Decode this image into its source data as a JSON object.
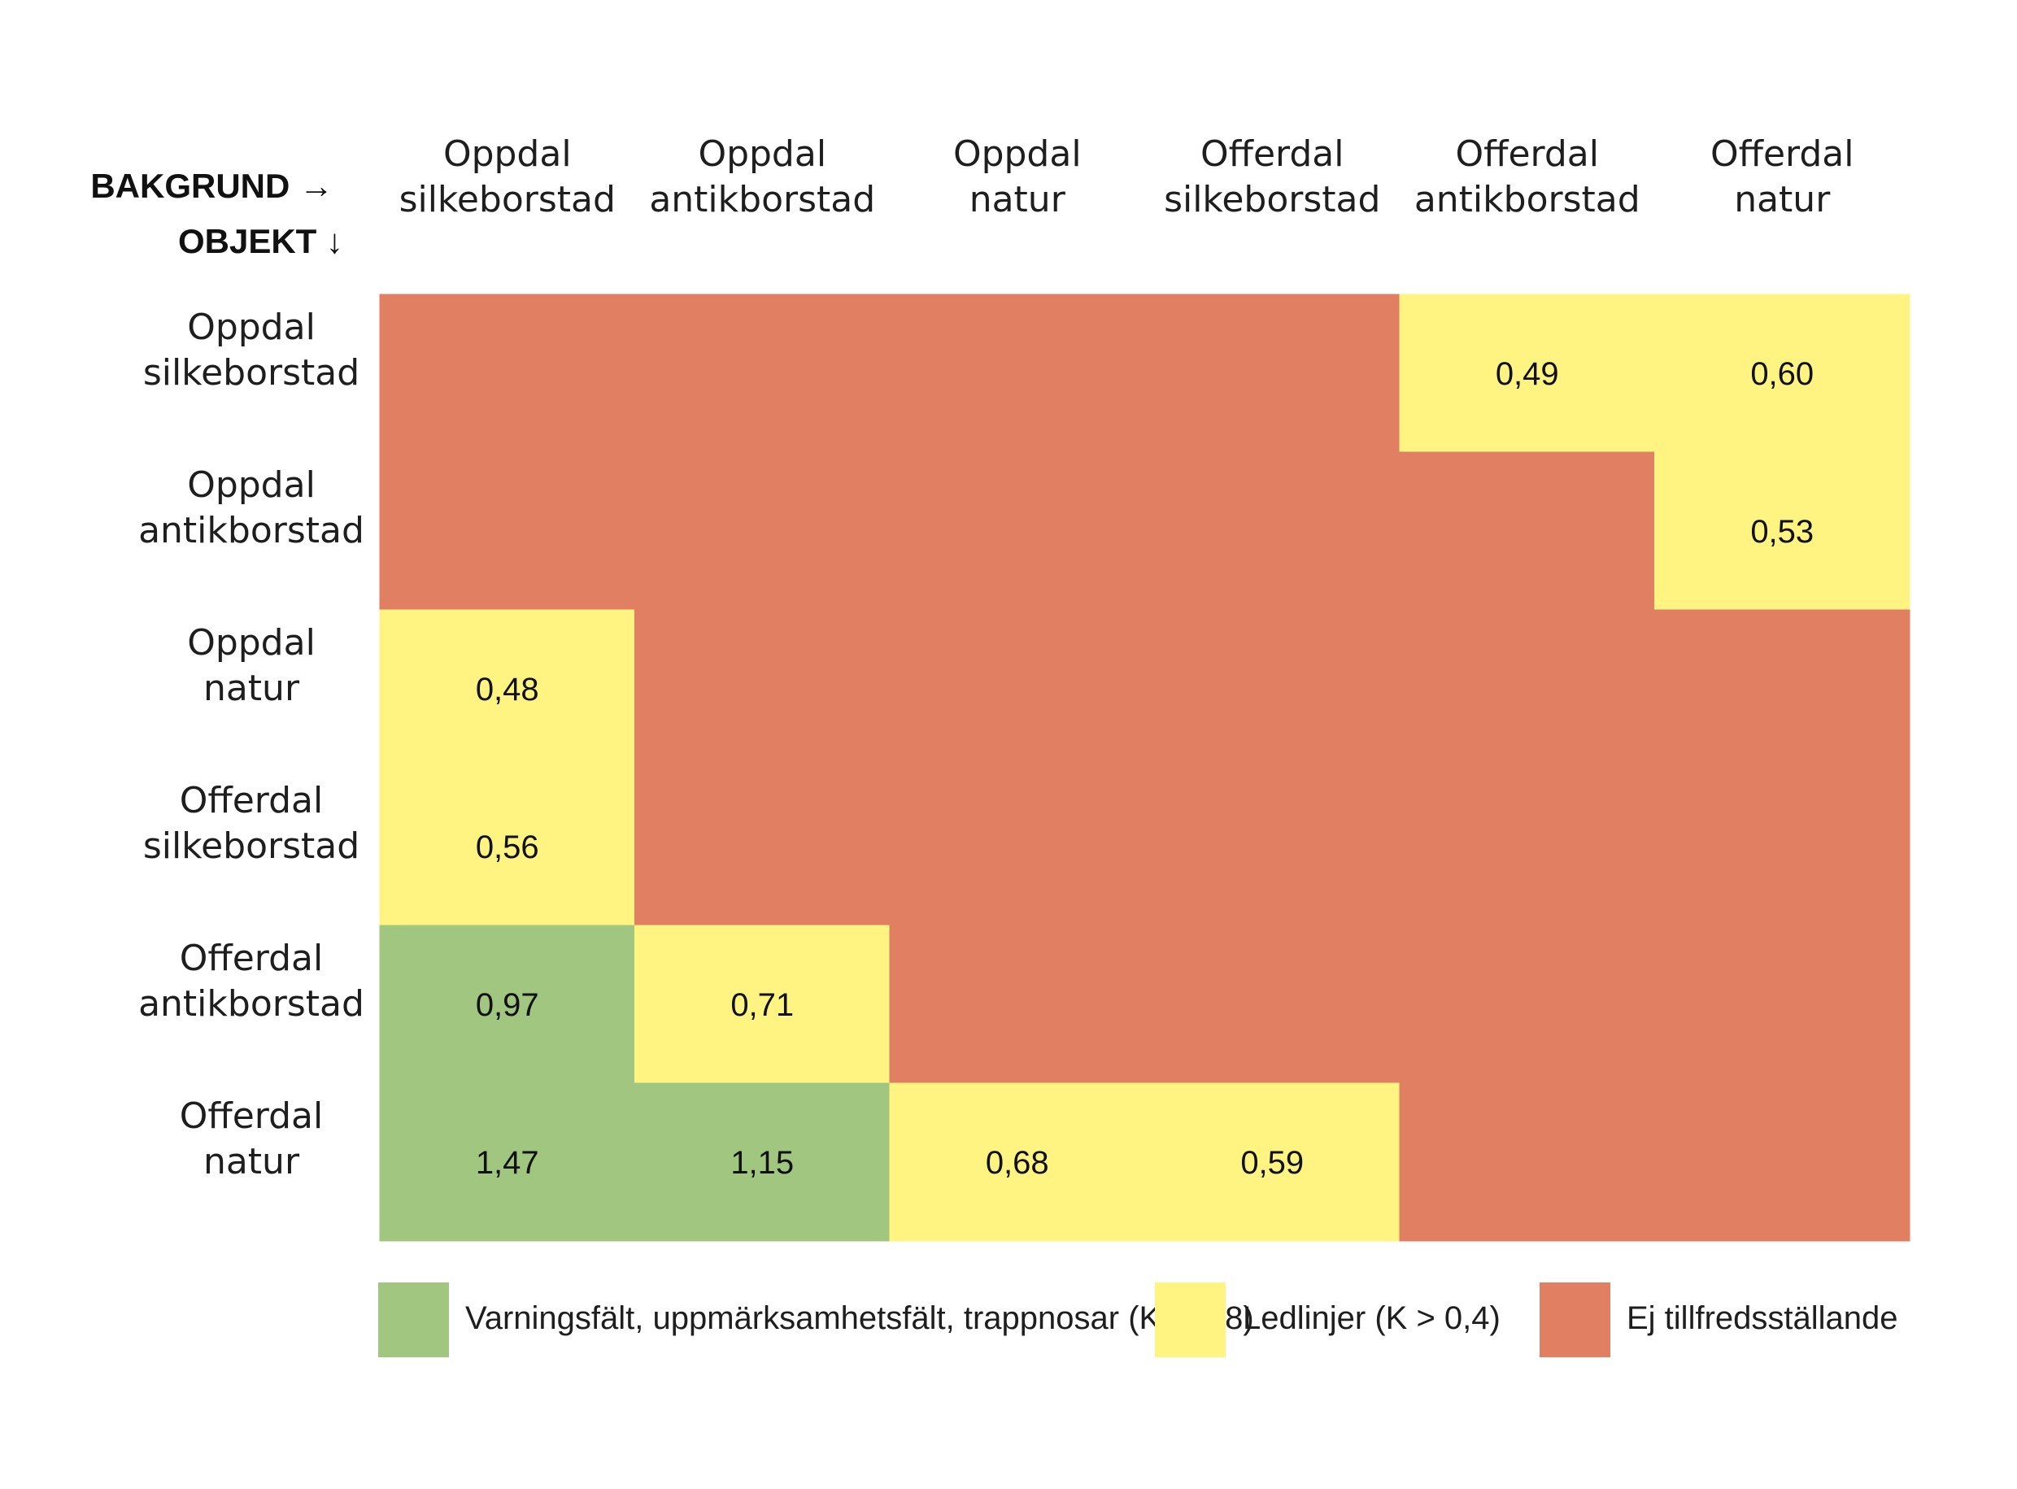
{
  "chart_data": {
    "type": "heatmap",
    "title": "",
    "column_axis_label": "BAKGRUND",
    "row_axis_label": "OBJEKT",
    "column_axis_arrow": "→",
    "row_axis_arrow": "↓",
    "columns": [
      [
        "Oppdal",
        "silkeborstad"
      ],
      [
        "Oppdal",
        "antikborstad"
      ],
      [
        "Oppdal",
        "natur"
      ],
      [
        "Offerdal",
        "silkeborstad"
      ],
      [
        "Offerdal",
        "antikborstad"
      ],
      [
        "Offerdal",
        "natur"
      ]
    ],
    "rows": [
      [
        "Oppdal",
        "silkeborstad"
      ],
      [
        "Oppdal",
        "antikborstad"
      ],
      [
        "Oppdal",
        "natur"
      ],
      [
        "Offerdal",
        "silkeborstad"
      ],
      [
        "Offerdal",
        "antikborstad"
      ],
      [
        "Offerdal",
        "natur"
      ]
    ],
    "values": [
      [
        null,
        null,
        null,
        null,
        "0,49",
        "0,60"
      ],
      [
        null,
        null,
        null,
        null,
        null,
        "0,53"
      ],
      [
        "0,48",
        null,
        null,
        null,
        null,
        null
      ],
      [
        "0,56",
        null,
        null,
        null,
        null,
        null
      ],
      [
        "0,97",
        "0,71",
        null,
        null,
        null,
        null
      ],
      [
        "1,47",
        "1,15",
        "0,68",
        "0,59",
        null,
        null
      ]
    ],
    "categories_matrix": [
      [
        "red",
        "red",
        "red",
        "red",
        "yellow",
        "yellow"
      ],
      [
        "red",
        "red",
        "red",
        "red",
        "red",
        "yellow"
      ],
      [
        "yellow",
        "red",
        "red",
        "red",
        "red",
        "red"
      ],
      [
        "yellow",
        "red",
        "red",
        "red",
        "red",
        "red"
      ],
      [
        "green",
        "yellow",
        "red",
        "red",
        "red",
        "red"
      ],
      [
        "green",
        "green",
        "yellow",
        "yellow",
        "red",
        "red"
      ]
    ],
    "colors": {
      "green": "#a1c67f",
      "yellow": "#fff381",
      "red": "#e07f62"
    },
    "legend": [
      {
        "key": "green",
        "label": "Varningsfält, uppmärksamhetsfält, trappnosar (K > 0,8)"
      },
      {
        "key": "yellow",
        "label": "Ledlinjer (K > 0,4)"
      },
      {
        "key": "red",
        "label": "Ej tillfredsställande"
      }
    ],
    "legend_position": "bottom"
  }
}
